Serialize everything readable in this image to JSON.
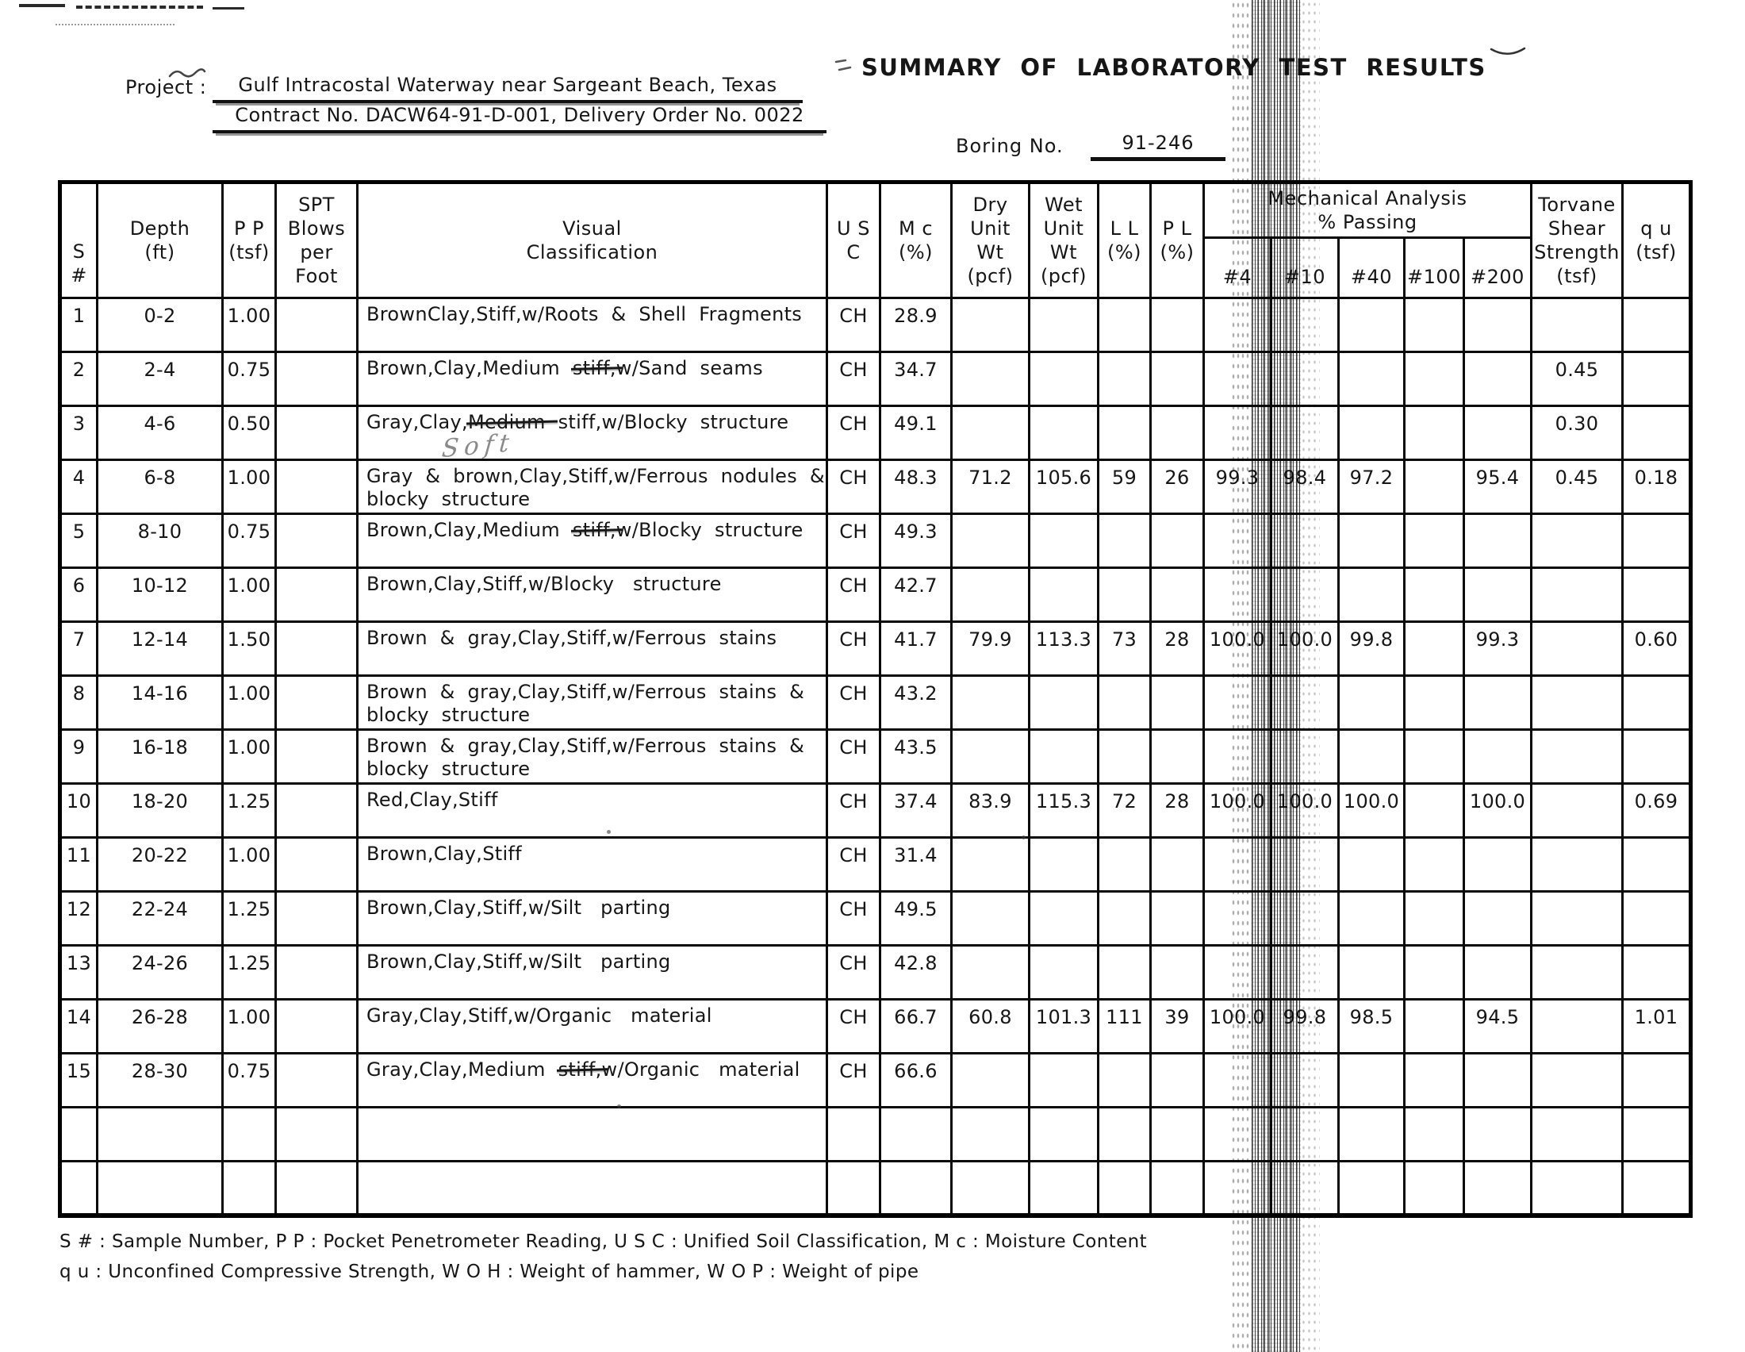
{
  "page": {
    "project_label": "Project :",
    "project_line1": "Gulf Intracostal Waterway near Sargeant Beach, Texas",
    "project_line2": "Contract No. DACW64-91-D-001, Delivery Order No. 0022",
    "title": "SUMMARY OF LABORATORY TEST RESULTS",
    "boring_label": "Boring No.",
    "boring_value": "91-246"
  },
  "table": {
    "headers": {
      "s": "S #",
      "depth": "Depth\n(ft)",
      "pp": "P P\n(tsf)",
      "spt": "SPT\nBlows\nper\nFoot",
      "visual": "Visual\nClassification",
      "usc": "U S C",
      "mc": "M c\n(%)",
      "dry": "Dry\nUnit\nWt\n(pcf)",
      "wet": "Wet\nUnit\nWt\n(pcf)",
      "ll": "L L\n(%)",
      "pl": "P L\n(%)",
      "mech_group": "Mechanical Analysis\n% Passing",
      "sieve_4": "#4",
      "sieve_10": "#10",
      "sieve_40": "#40",
      "sieve_100": "#100",
      "sieve_200": "#200",
      "tv": "Torvane\nShear\nStrength\n(tsf)",
      "qu": "q u\n(tsf)"
    },
    "rows": [
      {
        "s": "1",
        "depth": "0-2",
        "pp": "1.00",
        "spt": "",
        "visual": [
          [
            {
              "t": "BrownClay,Stiff,w/Roots  &  Shell  Fragments"
            }
          ]
        ],
        "usc": "CH",
        "mc": "28.9",
        "dry": "",
        "wet": "",
        "ll": "",
        "pl": "",
        "p4": "",
        "p10": "",
        "p40": "",
        "p100": "",
        "p200": "",
        "tv": "",
        "qu": ""
      },
      {
        "s": "2",
        "depth": "2-4",
        "pp": "0.75",
        "spt": "",
        "visual": [
          [
            {
              "t": "Brown,Clay,Medium  "
            },
            {
              "t": "stiff,",
              "strike": true
            },
            {
              "t": "w/Sand  seams"
            }
          ]
        ],
        "usc": "CH",
        "mc": "34.7",
        "dry": "",
        "wet": "",
        "ll": "",
        "pl": "",
        "p4": "",
        "p10": "",
        "p40": "",
        "p100": "",
        "p200": "",
        "tv": "0.45",
        "qu": ""
      },
      {
        "s": "3",
        "depth": "4-6",
        "pp": "0.50",
        "spt": "",
        "visual": [
          [
            {
              "t": "Gray,Clay,"
            },
            {
              "t": "Medium ",
              "strike": true
            },
            {
              "t": " stiff,w/Blocky  structure"
            }
          ]
        ],
        "hand": "Soft",
        "usc": "CH",
        "mc": "49.1",
        "dry": "",
        "wet": "",
        "ll": "",
        "pl": "",
        "p4": "",
        "p10": "",
        "p40": "",
        "p100": "",
        "p200": "",
        "tv": "0.30",
        "qu": ""
      },
      {
        "s": "4",
        "depth": "6-8",
        "pp": "1.00",
        "spt": "",
        "visual": [
          [
            {
              "t": "Gray  &  brown,Clay,Stiff,w/Ferrous  nodules  &"
            }
          ],
          [
            {
              "t": "blocky  structure"
            }
          ]
        ],
        "usc": "CH",
        "mc": "48.3",
        "dry": "71.2",
        "wet": "105.6",
        "ll": "59",
        "pl": "26",
        "p4": "99.3",
        "p10": "98.4",
        "p40": "97.2",
        "p100": "",
        "p200": "95.4",
        "tv": "0.45",
        "qu": "0.18"
      },
      {
        "s": "5",
        "depth": "8-10",
        "pp": "0.75",
        "spt": "",
        "visual": [
          [
            {
              "t": "Brown,Clay,Medium  "
            },
            {
              "t": "stiff,",
              "strike": true
            },
            {
              "t": "w/Blocky  structure"
            }
          ]
        ],
        "usc": "CH",
        "mc": "49.3",
        "dry": "",
        "wet": "",
        "ll": "",
        "pl": "",
        "p4": "",
        "p10": "",
        "p40": "",
        "p100": "",
        "p200": "",
        "tv": "",
        "qu": ""
      },
      {
        "s": "6",
        "depth": "10-12",
        "pp": "1.00",
        "spt": "",
        "visual": [
          [
            {
              "t": "Brown,Clay,Stiff,w/Blocky   structure"
            }
          ]
        ],
        "usc": "CH",
        "mc": "42.7",
        "dry": "",
        "wet": "",
        "ll": "",
        "pl": "",
        "p4": "",
        "p10": "",
        "p40": "",
        "p100": "",
        "p200": "",
        "tv": "",
        "qu": ""
      },
      {
        "s": "7",
        "depth": "12-14",
        "pp": "1.50",
        "spt": "",
        "visual": [
          [
            {
              "t": "Brown  &  gray,Clay,Stiff,w/Ferrous  stains"
            }
          ]
        ],
        "usc": "CH",
        "mc": "41.7",
        "dry": "79.9",
        "wet": "113.3",
        "ll": "73",
        "pl": "28",
        "p4": "100.0",
        "p10": "100.0",
        "p40": "99.8",
        "p100": "",
        "p200": "99.3",
        "tv": "",
        "qu": "0.60"
      },
      {
        "s": "8",
        "depth": "14-16",
        "pp": "1.00",
        "spt": "",
        "visual": [
          [
            {
              "t": "Brown  &  gray,Clay,Stiff,w/Ferrous  stains  &"
            }
          ],
          [
            {
              "t": "blocky  structure"
            }
          ]
        ],
        "usc": "CH",
        "mc": "43.2",
        "dry": "",
        "wet": "",
        "ll": "",
        "pl": "",
        "p4": "",
        "p10": "",
        "p40": "",
        "p100": "",
        "p200": "",
        "tv": "",
        "qu": ""
      },
      {
        "s": "9",
        "depth": "16-18",
        "pp": "1.00",
        "spt": "",
        "visual": [
          [
            {
              "t": "Brown  &  gray,Clay,Stiff,w/Ferrous  stains  &"
            }
          ],
          [
            {
              "t": "blocky  structure"
            }
          ]
        ],
        "usc": "CH",
        "mc": "43.5",
        "dry": "",
        "wet": "",
        "ll": "",
        "pl": "",
        "p4": "",
        "p10": "",
        "p40": "",
        "p100": "",
        "p200": "",
        "tv": "",
        "qu": ""
      },
      {
        "s": "10",
        "depth": "18-20",
        "pp": "1.25",
        "spt": "",
        "visual": [
          [
            {
              "t": "Red,Clay,Stiff"
            }
          ]
        ],
        "usc": "CH",
        "mc": "37.4",
        "dry": "83.9",
        "wet": "115.3",
        "ll": "72",
        "pl": "28",
        "p4": "100.0",
        "p10": "100.0",
        "p40": "100.0",
        "p100": "",
        "p200": "100.0",
        "tv": "",
        "qu": "0.69"
      },
      {
        "s": "11",
        "depth": "20-22",
        "pp": "1.00",
        "spt": "",
        "visual": [
          [
            {
              "t": "Brown,Clay,Stiff"
            }
          ]
        ],
        "usc": "CH",
        "mc": "31.4",
        "dry": "",
        "wet": "",
        "ll": "",
        "pl": "",
        "p4": "",
        "p10": "",
        "p40": "",
        "p100": "",
        "p200": "",
        "tv": "",
        "qu": ""
      },
      {
        "s": "12",
        "depth": "22-24",
        "pp": "1.25",
        "spt": "",
        "visual": [
          [
            {
              "t": "Brown,Clay,Stiff,w/Silt   parting"
            }
          ]
        ],
        "usc": "CH",
        "mc": "49.5",
        "dry": "",
        "wet": "",
        "ll": "",
        "pl": "",
        "p4": "",
        "p10": "",
        "p40": "",
        "p100": "",
        "p200": "",
        "tv": "",
        "qu": ""
      },
      {
        "s": "13",
        "depth": "24-26",
        "pp": "1.25",
        "spt": "",
        "visual": [
          [
            {
              "t": "Brown,Clay,Stiff,w/Silt   parting"
            }
          ]
        ],
        "usc": "CH",
        "mc": "42.8",
        "dry": "",
        "wet": "",
        "ll": "",
        "pl": "",
        "p4": "",
        "p10": "",
        "p40": "",
        "p100": "",
        "p200": "",
        "tv": "",
        "qu": ""
      },
      {
        "s": "14",
        "depth": "26-28",
        "pp": "1.00",
        "spt": "",
        "visual": [
          [
            {
              "t": "Gray,Clay,Stiff,w/Organic   material"
            }
          ]
        ],
        "usc": "CH",
        "mc": "66.7",
        "dry": "60.8",
        "wet": "101.3",
        "ll": "111",
        "pl": "39",
        "p4": "100.0",
        "p10": "99.8",
        "p40": "98.5",
        "p100": "",
        "p200": "94.5",
        "tv": "",
        "qu": "1.01"
      },
      {
        "s": "15",
        "depth": "28-30",
        "pp": "0.75",
        "spt": "",
        "visual": [
          [
            {
              "t": "Gray,Clay,Medium  "
            },
            {
              "t": "stiff,",
              "strike": true
            },
            {
              "t": "w/Organic   material"
            }
          ]
        ],
        "usc": "CH",
        "mc": "66.6",
        "dry": "",
        "wet": "",
        "ll": "",
        "pl": "",
        "p4": "",
        "p10": "",
        "p40": "",
        "p100": "",
        "p200": "",
        "tv": "",
        "qu": ""
      },
      {
        "s": "",
        "depth": "",
        "pp": "",
        "spt": "",
        "visual": [],
        "usc": "",
        "mc": "",
        "dry": "",
        "wet": "",
        "ll": "",
        "pl": "",
        "p4": "",
        "p10": "",
        "p40": "",
        "p100": "",
        "p200": "",
        "tv": "",
        "qu": ""
      },
      {
        "s": "",
        "depth": "",
        "pp": "",
        "spt": "",
        "visual": [],
        "usc": "",
        "mc": "",
        "dry": "",
        "wet": "",
        "ll": "",
        "pl": "",
        "p4": "",
        "p10": "",
        "p40": "",
        "p100": "",
        "p200": "",
        "tv": "",
        "qu": ""
      }
    ]
  },
  "footnotes": [
    "S # : Sample Number, P P : Pocket Penetrometer Reading, U S C : Unified Soil Classification, M c : Moisture Content",
    "q u : Unconfined Compressive Strength, W O H : Weight of hammer, W O P : Weight of pipe"
  ]
}
